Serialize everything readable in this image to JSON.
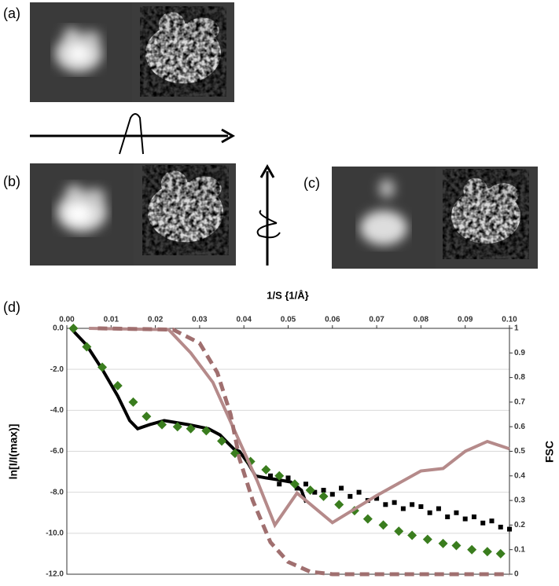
{
  "panel_labels": [
    "(a)",
    "(b)",
    "(c)",
    "(d)"
  ],
  "chart_data": {
    "type": "line",
    "title": "1/S {1/Å}",
    "y_label": "ln[I/I(max)]",
    "y2_label": "FSC",
    "xlim": [
      0,
      0.1
    ],
    "xticks": [
      {
        "value": 0,
        "label": "0.00"
      },
      0.01,
      0.02,
      0.03,
      0.04,
      0.05,
      0.06,
      0.07,
      0.08,
      0.09,
      {
        "value": 0.1,
        "label": "0.10"
      }
    ],
    "ylim": [
      -12,
      0
    ],
    "yticks": [
      {
        "value": 0,
        "label": "0.0"
      },
      {
        "value": -2,
        "label": "-2.0"
      },
      {
        "value": -4,
        "label": "-4.0"
      },
      {
        "value": -6,
        "label": "-6.0"
      },
      {
        "value": -8,
        "label": "-8.0"
      },
      {
        "value": -10,
        "label": "-10.0"
      },
      {
        "value": -12,
        "label": "-12.0"
      }
    ],
    "y2lim": [
      0,
      1
    ],
    "y2ticks": [
      0,
      0.1,
      0.2,
      0.3,
      0.4,
      0.5,
      0.6,
      0.7,
      0.8,
      0.9,
      1
    ],
    "grid": true,
    "series": [
      {
        "color": "#000000",
        "style": "line",
        "x": [
          0.0009,
          0.0044,
          0.008,
          0.0115,
          0.0142,
          0.016,
          0.0187,
          0.022,
          0.0275,
          0.032,
          0.0346,
          0.0364,
          0.0378,
          0.039,
          0.041,
          0.0426,
          0.045,
          0.048,
          0.0506,
          0.053,
          0.054
        ],
        "values": [
          0,
          -0.8,
          -2.0,
          -3.3,
          -4.5,
          -4.9,
          -4.7,
          -4.5,
          -4.7,
          -4.9,
          -5.2,
          -5.6,
          -5.9,
          -6.0,
          -6.6,
          -7.2,
          -7.3,
          -7.4,
          -7.5,
          -7.9,
          -8.5
        ]
      },
      {
        "color": "#000000",
        "style": "squares",
        "x": [
          0.046,
          0.048,
          0.05,
          0.052,
          0.054,
          0.056,
          0.058,
          0.06,
          0.062,
          0.064,
          0.066,
          0.068,
          0.07,
          0.072,
          0.074,
          0.076,
          0.078,
          0.08,
          0.082,
          0.084,
          0.086,
          0.088,
          0.09,
          0.092,
          0.094,
          0.096,
          0.098,
          0.1
        ],
        "values": [
          -7.2,
          -7.6,
          -7.3,
          -7.8,
          -7.6,
          -8.0,
          -7.9,
          -8.1,
          -7.8,
          -8.2,
          -8.0,
          -8.4,
          -8.3,
          -8.6,
          -8.5,
          -8.8,
          -8.6,
          -8.7,
          -9.0,
          -8.8,
          -9.2,
          -9.0,
          -9.3,
          -9.2,
          -9.5,
          -9.4,
          -9.7,
          -9.8
        ]
      },
      {
        "color": "#3a7d1e",
        "style": "diamonds",
        "x": [
          0.0015,
          0.0045,
          0.008,
          0.0115,
          0.015,
          0.018,
          0.0215,
          0.025,
          0.028,
          0.0315,
          0.035,
          0.038,
          0.0415,
          0.045,
          0.048,
          0.0515,
          0.055,
          0.058,
          0.0615,
          0.065,
          0.068,
          0.0715,
          0.075,
          0.078,
          0.0815,
          0.085,
          0.088,
          0.0915,
          0.095,
          0.098
        ],
        "values": [
          0,
          -0.9,
          -1.9,
          -2.8,
          -3.6,
          -4.3,
          -4.7,
          -4.8,
          -4.9,
          -5.0,
          -5.5,
          -6.1,
          -6.5,
          -6.9,
          -7.2,
          -7.6,
          -7.9,
          -8.2,
          -8.6,
          -8.9,
          -9.3,
          -9.6,
          -9.9,
          -10.1,
          -10.3,
          -10.5,
          -10.6,
          -10.8,
          -10.9,
          -11.0
        ]
      },
      {
        "color": "#b58a8a",
        "style": "line",
        "axis": "y2",
        "x": [
          0.005,
          0.023,
          0.028,
          0.033,
          0.037,
          0.04,
          0.043,
          0.047,
          0.052,
          0.06,
          0.07,
          0.08,
          0.085,
          0.09,
          0.095,
          0.1
        ],
        "values": [
          1,
          0.995,
          0.9,
          0.78,
          0.62,
          0.5,
          0.38,
          0.2,
          0.33,
          0.21,
          0.32,
          0.42,
          0.43,
          0.5,
          0.54,
          0.51
        ]
      },
      {
        "color": "#a06f6f",
        "style": "dashed",
        "axis": "y2",
        "x": [
          0.007,
          0.024,
          0.03,
          0.034,
          0.037,
          0.039,
          0.042,
          0.046,
          0.05,
          0.055,
          0.06,
          0.1
        ],
        "values": [
          1,
          0.995,
          0.94,
          0.82,
          0.65,
          0.47,
          0.3,
          0.13,
          0.05,
          0.01,
          0,
          0
        ]
      }
    ]
  }
}
